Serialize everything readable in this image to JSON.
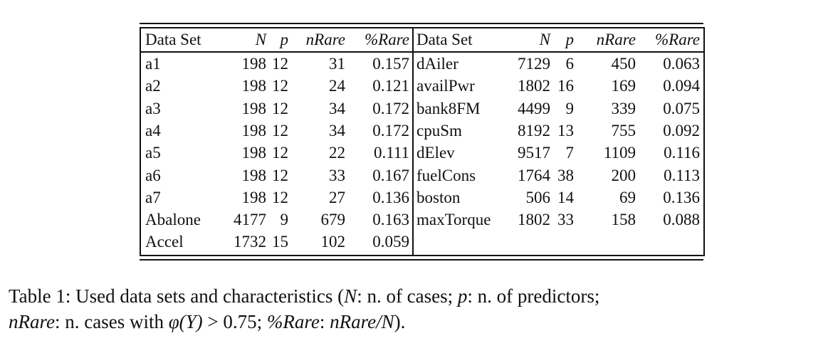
{
  "table": {
    "headers": [
      "Data Set",
      "N",
      "p",
      "nRare",
      "%Rare"
    ],
    "left": [
      [
        "a1",
        "198",
        "12",
        "31",
        "0.157"
      ],
      [
        "a2",
        "198",
        "12",
        "24",
        "0.121"
      ],
      [
        "a3",
        "198",
        "12",
        "34",
        "0.172"
      ],
      [
        "a4",
        "198",
        "12",
        "34",
        "0.172"
      ],
      [
        "a5",
        "198",
        "12",
        "22",
        "0.111"
      ],
      [
        "a6",
        "198",
        "12",
        "33",
        "0.167"
      ],
      [
        "a7",
        "198",
        "12",
        "27",
        "0.136"
      ],
      [
        "Abalone",
        "4177",
        "9",
        "679",
        "0.163"
      ],
      [
        "Accel",
        "1732",
        "15",
        "102",
        "0.059"
      ]
    ],
    "right": [
      [
        "dAiler",
        "7129",
        "6",
        "450",
        "0.063"
      ],
      [
        "availPwr",
        "1802",
        "16",
        "169",
        "0.094"
      ],
      [
        "bank8FM",
        "4499",
        "9",
        "339",
        "0.075"
      ],
      [
        "cpuSm",
        "8192",
        "13",
        "755",
        "0.092"
      ],
      [
        "dElev",
        "9517",
        "7",
        "1109",
        "0.116"
      ],
      [
        "fuelCons",
        "1764",
        "38",
        "200",
        "0.113"
      ],
      [
        "boston",
        "506",
        "14",
        "69",
        "0.136"
      ],
      [
        "maxTorque",
        "1802",
        "33",
        "158",
        "0.088"
      ]
    ]
  },
  "caption": {
    "label": "Table 1:",
    "text_1": " Used data sets and characteristics (",
    "N": "N",
    "text_2": ": n. of cases; ",
    "p": "p",
    "text_3": ": n. of predictors;",
    "nRare": "nRare",
    "text_4": ": n. cases with ",
    "phi": "φ(Y)",
    "text_5": " > 0.75; ",
    "pctRare": "%Rare",
    "text_6": ": ",
    "ratio": "nRare/N",
    "text_7": ")."
  }
}
